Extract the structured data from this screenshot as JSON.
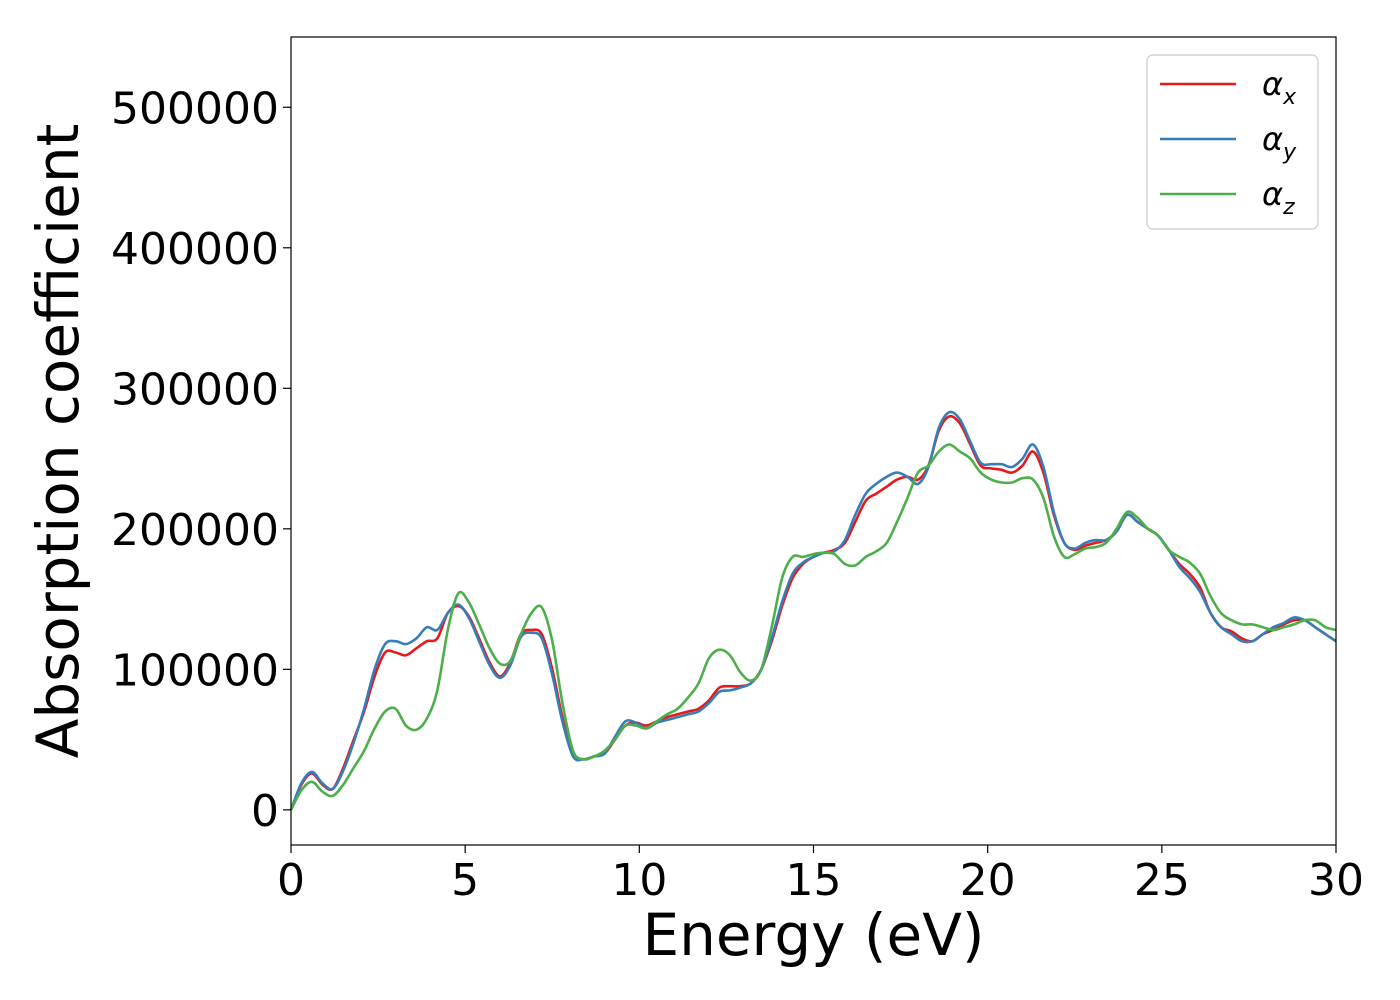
{
  "chart_data": {
    "type": "line",
    "title": "",
    "xlabel": "Energy (eV)",
    "ylabel": "Absorption coefficient",
    "xlim": [
      0,
      30
    ],
    "ylim": [
      -25000,
      550000
    ],
    "xticks": [
      0,
      5,
      10,
      15,
      20,
      25,
      30
    ],
    "yticks": [
      0,
      100000,
      200000,
      300000,
      400000,
      500000
    ],
    "grid": false,
    "legend": "top-right",
    "series": [
      {
        "name": "α",
        "subscript": "x",
        "color": "#e41a1c",
        "x": [
          0,
          0.3,
          0.6,
          0.9,
          1.2,
          1.5,
          1.8,
          2.1,
          2.4,
          2.7,
          3.0,
          3.3,
          3.6,
          3.9,
          4.2,
          4.5,
          4.8,
          5.1,
          5.4,
          5.7,
          6.0,
          6.3,
          6.6,
          6.9,
          7.2,
          7.5,
          7.8,
          8.1,
          8.4,
          8.7,
          9.0,
          9.3,
          9.6,
          9.9,
          10.2,
          10.5,
          10.8,
          11.1,
          11.4,
          11.7,
          12.0,
          12.3,
          12.6,
          12.9,
          13.2,
          13.5,
          13.8,
          14.1,
          14.4,
          14.7,
          15.0,
          15.3,
          15.6,
          15.9,
          16.2,
          16.5,
          16.8,
          17.1,
          17.4,
          17.7,
          18.0,
          18.3,
          18.6,
          18.9,
          19.2,
          19.5,
          19.8,
          20.1,
          20.4,
          20.7,
          21.0,
          21.3,
          21.6,
          21.9,
          22.2,
          22.5,
          22.8,
          23.1,
          23.4,
          23.7,
          24.0,
          24.3,
          24.6,
          24.9,
          25.2,
          25.5,
          25.8,
          26.1,
          26.4,
          26.7,
          27.0,
          27.3,
          27.6,
          27.9,
          28.2,
          28.5,
          28.8,
          29.1,
          29.4,
          29.7,
          30.0
        ],
        "y": [
          0,
          18000,
          26000,
          18000,
          15000,
          30000,
          50000,
          70000,
          95000,
          112000,
          112000,
          110000,
          115000,
          120000,
          122000,
          140000,
          145000,
          138000,
          122000,
          105000,
          95000,
          105000,
          125000,
          128000,
          125000,
          100000,
          65000,
          40000,
          36000,
          38000,
          40000,
          50000,
          60000,
          62000,
          60000,
          63000,
          66000,
          68000,
          70000,
          72000,
          78000,
          87000,
          88000,
          88000,
          90000,
          100000,
          120000,
          145000,
          165000,
          175000,
          180000,
          183000,
          185000,
          190000,
          205000,
          220000,
          225000,
          230000,
          235000,
          237000,
          235000,
          245000,
          270000,
          280000,
          275000,
          260000,
          245000,
          243000,
          242000,
          240000,
          245000,
          255000,
          240000,
          210000,
          190000,
          185000,
          188000,
          190000,
          192000,
          198000,
          210000,
          205000,
          200000,
          195000,
          185000,
          175000,
          168000,
          158000,
          140000,
          130000,
          127000,
          122000,
          120000,
          125000,
          128000,
          132000,
          135000,
          135000,
          130000,
          125000,
          120000
        ]
      },
      {
        "name": "α",
        "subscript": "y",
        "color": "#377eb8",
        "x": [
          0,
          0.3,
          0.6,
          0.9,
          1.2,
          1.5,
          1.8,
          2.1,
          2.4,
          2.7,
          3.0,
          3.3,
          3.6,
          3.9,
          4.2,
          4.5,
          4.8,
          5.1,
          5.4,
          5.7,
          6.0,
          6.3,
          6.6,
          6.9,
          7.2,
          7.5,
          7.8,
          8.1,
          8.4,
          8.7,
          9.0,
          9.3,
          9.6,
          9.9,
          10.2,
          10.5,
          10.8,
          11.1,
          11.4,
          11.7,
          12.0,
          12.3,
          12.6,
          12.9,
          13.2,
          13.5,
          13.8,
          14.1,
          14.4,
          14.7,
          15.0,
          15.3,
          15.6,
          15.9,
          16.2,
          16.5,
          16.8,
          17.1,
          17.4,
          17.7,
          18.0,
          18.3,
          18.6,
          18.9,
          19.2,
          19.5,
          19.8,
          20.1,
          20.4,
          20.7,
          21.0,
          21.3,
          21.6,
          21.9,
          22.2,
          22.5,
          22.8,
          23.1,
          23.4,
          23.7,
          24.0,
          24.3,
          24.6,
          24.9,
          25.2,
          25.5,
          25.8,
          26.1,
          26.4,
          26.7,
          27.0,
          27.3,
          27.6,
          27.9,
          28.2,
          28.5,
          28.8,
          29.1,
          29.4,
          29.7,
          30.0
        ],
        "y": [
          0,
          19000,
          27000,
          19000,
          15000,
          28000,
          48000,
          72000,
          100000,
          118000,
          120000,
          118000,
          122000,
          130000,
          128000,
          140000,
          146000,
          137000,
          120000,
          103000,
          94000,
          103000,
          123000,
          126000,
          122000,
          96000,
          62000,
          38000,
          36000,
          38000,
          40000,
          52000,
          63000,
          62000,
          58000,
          62000,
          64000,
          66000,
          68000,
          70000,
          76000,
          84000,
          85000,
          87000,
          90000,
          100000,
          122000,
          148000,
          168000,
          176000,
          180000,
          183000,
          184000,
          192000,
          210000,
          225000,
          232000,
          237000,
          240000,
          237000,
          232000,
          244000,
          272000,
          283000,
          278000,
          262000,
          247000,
          246000,
          246000,
          244000,
          250000,
          260000,
          244000,
          212000,
          190000,
          186000,
          190000,
          192000,
          192000,
          198000,
          210000,
          205000,
          200000,
          195000,
          185000,
          173000,
          165000,
          155000,
          140000,
          130000,
          125000,
          120000,
          120000,
          125000,
          130000,
          133000,
          137000,
          135000,
          130000,
          125000,
          120000
        ]
      },
      {
        "name": "α",
        "subscript": "z",
        "color": "#4daf4a",
        "x": [
          0,
          0.3,
          0.6,
          0.9,
          1.2,
          1.5,
          1.8,
          2.1,
          2.4,
          2.7,
          3.0,
          3.3,
          3.6,
          3.9,
          4.2,
          4.5,
          4.8,
          5.1,
          5.4,
          5.7,
          6.0,
          6.3,
          6.6,
          6.9,
          7.2,
          7.5,
          7.8,
          8.1,
          8.4,
          8.7,
          9.0,
          9.3,
          9.6,
          9.9,
          10.2,
          10.5,
          10.8,
          11.1,
          11.4,
          11.7,
          12.0,
          12.3,
          12.6,
          12.9,
          13.2,
          13.5,
          13.8,
          14.1,
          14.4,
          14.7,
          15.0,
          15.3,
          15.6,
          15.9,
          16.2,
          16.5,
          16.8,
          17.1,
          17.4,
          17.7,
          18.0,
          18.3,
          18.6,
          18.9,
          19.2,
          19.5,
          19.8,
          20.1,
          20.4,
          20.7,
          21.0,
          21.3,
          21.6,
          21.9,
          22.2,
          22.5,
          22.8,
          23.1,
          23.4,
          23.7,
          24.0,
          24.3,
          24.6,
          24.9,
          25.2,
          25.5,
          25.8,
          26.1,
          26.4,
          26.7,
          27.0,
          27.3,
          27.6,
          27.9,
          28.2,
          28.5,
          28.8,
          29.1,
          29.4,
          29.7,
          30.0
        ],
        "y": [
          0,
          14000,
          20000,
          13000,
          10000,
          18000,
          30000,
          42000,
          58000,
          70000,
          72000,
          60000,
          57000,
          65000,
          85000,
          128000,
          154000,
          148000,
          132000,
          115000,
          104000,
          106000,
          125000,
          140000,
          144000,
          120000,
          75000,
          42000,
          36000,
          38000,
          42000,
          50000,
          60000,
          60000,
          58000,
          63000,
          68000,
          72000,
          80000,
          90000,
          108000,
          114000,
          110000,
          98000,
          92000,
          100000,
          130000,
          165000,
          180000,
          180000,
          182000,
          183000,
          182000,
          175000,
          174000,
          180000,
          184000,
          190000,
          205000,
          222000,
          240000,
          245000,
          255000,
          260000,
          255000,
          250000,
          240000,
          235000,
          233000,
          233000,
          236000,
          235000,
          222000,
          195000,
          180000,
          182000,
          186000,
          187000,
          190000,
          200000,
          212000,
          208000,
          200000,
          195000,
          185000,
          180000,
          176000,
          168000,
          152000,
          140000,
          135000,
          132000,
          132000,
          130000,
          128000,
          130000,
          132000,
          135000,
          135000,
          130000,
          128000
        ]
      }
    ]
  }
}
